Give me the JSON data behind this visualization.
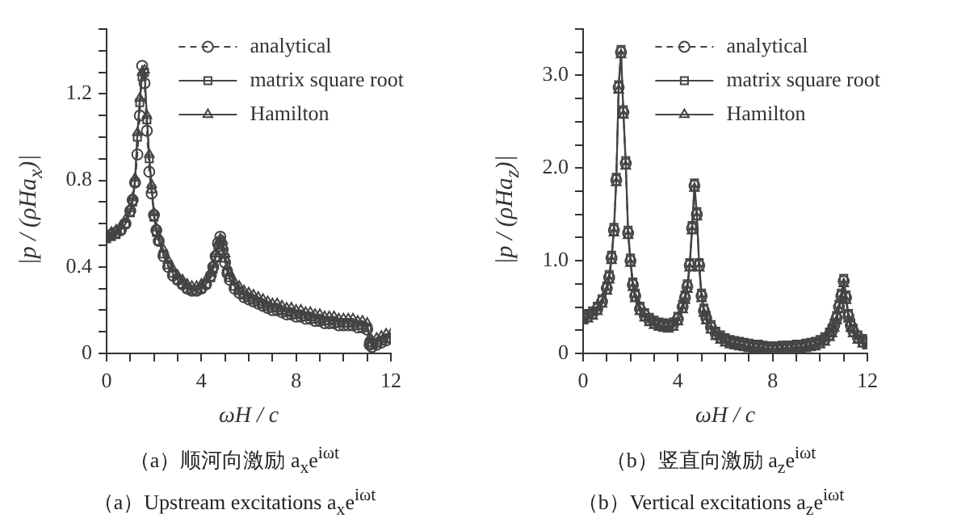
{
  "chart_data": [
    {
      "type": "line",
      "xlabel": "ωH / c",
      "ylabel": "|p / (ρHa$_{x}$)|",
      "annotations": [
        "（a）顺河向激励 a$_{x}$e$^{iωt}$",
        "（a）Upstream excitations a$_{x}$e$^{iωt}$"
      ],
      "x": [
        0,
        0.2,
        0.4,
        0.6,
        0.8,
        1.0,
        1.1,
        1.2,
        1.3,
        1.4,
        1.5,
        1.6,
        1.7,
        1.8,
        1.9,
        2.0,
        2.1,
        2.2,
        2.4,
        2.6,
        2.8,
        3.0,
        3.2,
        3.4,
        3.6,
        3.8,
        4.0,
        4.2,
        4.4,
        4.5,
        4.6,
        4.7,
        4.8,
        4.9,
        5.0,
        5.1,
        5.2,
        5.4,
        5.6,
        5.8,
        6.0,
        6.2,
        6.4,
        6.6,
        6.8,
        7.0,
        7.2,
        7.4,
        7.6,
        7.8,
        8.0,
        8.2,
        8.4,
        8.6,
        8.8,
        9.0,
        9.2,
        9.4,
        9.6,
        9.8,
        10.0,
        10.2,
        10.4,
        10.6,
        10.8,
        11.0,
        11.1,
        11.2,
        11.4,
        11.6,
        11.8,
        12.0
      ],
      "series": [
        {
          "name": "analytical",
          "color": "#444444",
          "marker": "circle",
          "line_style": "dashed",
          "values": [
            0.54,
            0.55,
            0.56,
            0.57,
            0.6,
            0.66,
            0.71,
            0.79,
            0.92,
            1.1,
            1.33,
            1.25,
            1.03,
            0.84,
            0.74,
            0.64,
            0.57,
            0.52,
            0.45,
            0.4,
            0.36,
            0.34,
            0.32,
            0.3,
            0.29,
            0.29,
            0.3,
            0.32,
            0.36,
            0.4,
            0.45,
            0.51,
            0.54,
            0.48,
            0.42,
            0.37,
            0.34,
            0.3,
            0.28,
            0.26,
            0.25,
            0.24,
            0.23,
            0.22,
            0.21,
            0.2,
            0.2,
            0.19,
            0.18,
            0.18,
            0.17,
            0.17,
            0.16,
            0.16,
            0.15,
            0.15,
            0.14,
            0.14,
            0.14,
            0.13,
            0.13,
            0.13,
            0.13,
            0.12,
            0.12,
            0.11,
            0.04,
            0.03,
            0.04,
            0.05,
            0.06,
            0.07
          ]
        },
        {
          "name": "matrix square root",
          "color": "#444444",
          "marker": "square",
          "line_style": "solid",
          "values": [
            0.53,
            0.54,
            0.55,
            0.57,
            0.6,
            0.65,
            0.7,
            0.79,
            1.0,
            1.16,
            1.28,
            1.3,
            1.08,
            0.9,
            0.76,
            0.63,
            0.56,
            0.52,
            0.46,
            0.41,
            0.37,
            0.34,
            0.32,
            0.3,
            0.29,
            0.29,
            0.3,
            0.32,
            0.35,
            0.39,
            0.44,
            0.49,
            0.52,
            0.5,
            0.44,
            0.38,
            0.35,
            0.31,
            0.29,
            0.27,
            0.26,
            0.25,
            0.24,
            0.23,
            0.22,
            0.21,
            0.21,
            0.2,
            0.19,
            0.19,
            0.18,
            0.18,
            0.17,
            0.17,
            0.16,
            0.16,
            0.15,
            0.15,
            0.15,
            0.14,
            0.14,
            0.14,
            0.14,
            0.13,
            0.13,
            0.12,
            0.05,
            0.04,
            0.05,
            0.06,
            0.07,
            0.07
          ]
        },
        {
          "name": "Hamilton",
          "color": "#444444",
          "marker": "triangle",
          "line_style": "solid",
          "values": [
            0.55,
            0.56,
            0.57,
            0.59,
            0.62,
            0.67,
            0.72,
            0.81,
            1.02,
            1.18,
            1.3,
            1.31,
            1.1,
            0.92,
            0.78,
            0.65,
            0.58,
            0.54,
            0.48,
            0.43,
            0.39,
            0.36,
            0.34,
            0.32,
            0.31,
            0.31,
            0.32,
            0.34,
            0.37,
            0.41,
            0.46,
            0.51,
            0.53,
            0.52,
            0.46,
            0.4,
            0.37,
            0.33,
            0.31,
            0.29,
            0.28,
            0.27,
            0.26,
            0.25,
            0.24,
            0.23,
            0.23,
            0.22,
            0.21,
            0.21,
            0.2,
            0.2,
            0.19,
            0.19,
            0.18,
            0.18,
            0.17,
            0.17,
            0.17,
            0.16,
            0.16,
            0.16,
            0.16,
            0.15,
            0.15,
            0.14,
            0.07,
            0.06,
            0.07,
            0.08,
            0.09,
            0.09
          ]
        }
      ],
      "xlim": [
        0,
        12
      ],
      "xticks": [
        0,
        {
          "value": 1,
          "label": null
        },
        {
          "value": 2,
          "label": null
        },
        {
          "value": 3,
          "label": null
        },
        4,
        {
          "value": 5,
          "label": null
        },
        {
          "value": 6,
          "label": null
        },
        {
          "value": 7,
          "label": null
        },
        8,
        {
          "value": 9,
          "label": null
        },
        {
          "value": 10,
          "label": null
        },
        {
          "value": 11,
          "label": null
        },
        12
      ],
      "ylim": [
        0,
        1.5
      ],
      "yticks": [
        0,
        {
          "value": 0.1,
          "label": null
        },
        {
          "value": 0.2,
          "label": null
        },
        {
          "value": 0.3,
          "label": null
        },
        0.4,
        {
          "value": 0.5,
          "label": null
        },
        {
          "value": 0.6,
          "label": null
        },
        {
          "value": 0.7,
          "label": null
        },
        0.8,
        {
          "value": 0.9,
          "label": null
        },
        {
          "value": 1.0,
          "label": null
        },
        {
          "value": 1.1,
          "label": null
        },
        1.2,
        {
          "value": 1.3,
          "label": null
        },
        {
          "value": 1.4,
          "label": null
        },
        {
          "value": 1.5,
          "label": null
        }
      ],
      "legend": "top right"
    },
    {
      "type": "line",
      "xlabel": "ωH / c",
      "ylabel": "|p / (ρHa$_{z}$)|",
      "annotations": [
        "（b）竖直向激励 a$_{z}$e$^{iωt}$",
        "（b）Vertical excitations a$_{z}$e$^{iωt}$"
      ],
      "x": [
        0,
        0.2,
        0.4,
        0.6,
        0.8,
        1.0,
        1.1,
        1.2,
        1.3,
        1.4,
        1.5,
        1.6,
        1.7,
        1.8,
        1.9,
        2.0,
        2.1,
        2.2,
        2.4,
        2.6,
        2.8,
        3.0,
        3.2,
        3.4,
        3.6,
        3.8,
        4.0,
        4.2,
        4.3,
        4.4,
        4.5,
        4.6,
        4.7,
        4.8,
        4.9,
        5.0,
        5.1,
        5.2,
        5.4,
        5.6,
        5.8,
        6.0,
        6.2,
        6.4,
        6.6,
        6.8,
        7.0,
        7.2,
        7.4,
        7.6,
        7.8,
        8.0,
        8.2,
        8.4,
        8.6,
        8.8,
        9.0,
        9.2,
        9.4,
        9.6,
        9.8,
        10.0,
        10.2,
        10.4,
        10.5,
        10.6,
        10.7,
        10.8,
        10.9,
        11.0,
        11.1,
        11.2,
        11.3,
        11.4,
        11.6,
        11.8,
        12.0
      ],
      "series": [
        {
          "name": "analytical",
          "color": "#444444",
          "marker": "circle",
          "line_style": "dashed",
          "values": [
            0.38,
            0.4,
            0.43,
            0.48,
            0.56,
            0.7,
            0.82,
            1.03,
            1.33,
            1.87,
            2.87,
            3.25,
            2.6,
            2.05,
            1.3,
            1.0,
            0.74,
            0.62,
            0.48,
            0.41,
            0.36,
            0.33,
            0.31,
            0.3,
            0.29,
            0.31,
            0.37,
            0.5,
            0.6,
            0.72,
            0.95,
            1.35,
            1.81,
            1.5,
            0.95,
            0.62,
            0.46,
            0.38,
            0.28,
            0.21,
            0.17,
            0.14,
            0.12,
            0.11,
            0.1,
            0.09,
            0.08,
            0.07,
            0.07,
            0.06,
            0.05,
            0.05,
            0.05,
            0.06,
            0.06,
            0.06,
            0.07,
            0.07,
            0.08,
            0.09,
            0.1,
            0.12,
            0.15,
            0.2,
            0.24,
            0.3,
            0.38,
            0.5,
            0.62,
            0.78,
            0.6,
            0.4,
            0.3,
            0.24,
            0.17,
            0.13,
            0.11
          ]
        },
        {
          "name": "matrix square root",
          "color": "#444444",
          "marker": "square",
          "line_style": "solid",
          "values": [
            0.41,
            0.43,
            0.46,
            0.51,
            0.59,
            0.73,
            0.85,
            1.06,
            1.36,
            1.9,
            2.9,
            3.28,
            2.63,
            2.08,
            1.33,
            1.03,
            0.77,
            0.65,
            0.51,
            0.44,
            0.39,
            0.36,
            0.34,
            0.33,
            0.32,
            0.34,
            0.4,
            0.53,
            0.63,
            0.75,
            0.98,
            1.38,
            1.84,
            1.53,
            0.98,
            0.65,
            0.49,
            0.41,
            0.31,
            0.24,
            0.2,
            0.17,
            0.15,
            0.14,
            0.13,
            0.12,
            0.11,
            0.1,
            0.1,
            0.09,
            0.08,
            0.08,
            0.08,
            0.09,
            0.09,
            0.09,
            0.1,
            0.1,
            0.11,
            0.12,
            0.13,
            0.15,
            0.18,
            0.23,
            0.27,
            0.33,
            0.41,
            0.53,
            0.65,
            0.81,
            0.63,
            0.43,
            0.33,
            0.27,
            0.2,
            0.16,
            0.14
          ]
        },
        {
          "name": "Hamilton",
          "color": "#444444",
          "marker": "triangle",
          "line_style": "solid",
          "values": [
            0.35,
            0.37,
            0.4,
            0.45,
            0.53,
            0.67,
            0.79,
            1.0,
            1.3,
            1.84,
            2.84,
            3.22,
            2.57,
            2.02,
            1.27,
            0.97,
            0.71,
            0.59,
            0.45,
            0.38,
            0.33,
            0.3,
            0.28,
            0.27,
            0.26,
            0.28,
            0.34,
            0.47,
            0.57,
            0.69,
            0.92,
            1.32,
            1.78,
            1.47,
            0.92,
            0.59,
            0.43,
            0.35,
            0.25,
            0.18,
            0.14,
            0.11,
            0.09,
            0.08,
            0.07,
            0.06,
            0.05,
            0.04,
            0.04,
            0.03,
            0.02,
            0.02,
            0.02,
            0.03,
            0.03,
            0.03,
            0.04,
            0.04,
            0.05,
            0.06,
            0.07,
            0.09,
            0.12,
            0.17,
            0.21,
            0.27,
            0.35,
            0.47,
            0.59,
            0.75,
            0.57,
            0.37,
            0.27,
            0.21,
            0.14,
            0.1,
            0.08
          ]
        }
      ],
      "xlim": [
        0,
        12
      ],
      "xticks": [
        0,
        {
          "value": 1,
          "label": null
        },
        {
          "value": 2,
          "label": null
        },
        {
          "value": 3,
          "label": null
        },
        4,
        {
          "value": 5,
          "label": null
        },
        {
          "value": 6,
          "label": null
        },
        {
          "value": 7,
          "label": null
        },
        8,
        {
          "value": 9,
          "label": null
        },
        {
          "value": 10,
          "label": null
        },
        {
          "value": 11,
          "label": null
        },
        12
      ],
      "ylim": [
        0,
        3.5
      ],
      "yticks": [
        0,
        {
          "value": 0.25,
          "label": null
        },
        {
          "value": 0.5,
          "label": null
        },
        {
          "value": 0.75,
          "label": null
        },
        {
          "value": 1,
          "label": "1.0"
        },
        {
          "value": 1.25,
          "label": null
        },
        {
          "value": 1.5,
          "label": null
        },
        {
          "value": 1.75,
          "label": null
        },
        {
          "value": 2,
          "label": "2.0"
        },
        {
          "value": 2.25,
          "label": null
        },
        {
          "value": 2.5,
          "label": null
        },
        {
          "value": 2.75,
          "label": null
        },
        {
          "value": 3,
          "label": "3.0"
        },
        {
          "value": 3.25,
          "label": null
        },
        {
          "value": 3.5,
          "label": null
        }
      ],
      "legend": "top right"
    }
  ]
}
